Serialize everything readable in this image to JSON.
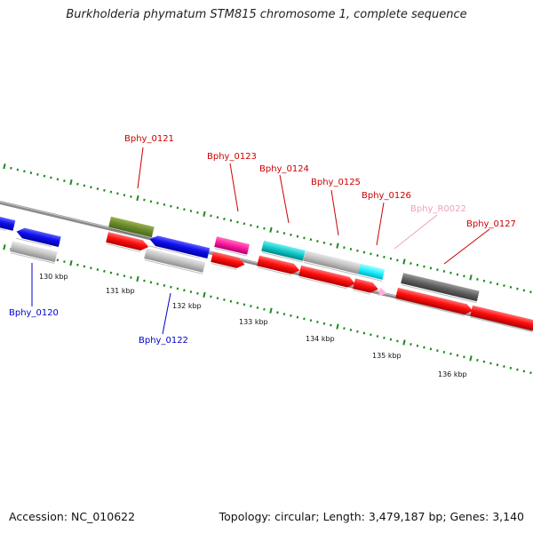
{
  "title": "Burkholderia phymatum STM815 chromosome 1, complete sequence",
  "footer": {
    "accession": "Accession: NC_010622",
    "summary": "Topology: circular; Length: 3,479,187 bp; Genes: 3,140"
  },
  "colors": {
    "backbone": "#8a8a8a",
    "tick_dots": "#1a8a1a",
    "label_red": "#cc0000",
    "label_blue": "#0000cc",
    "label_pink": "#f0a0c0"
  },
  "scale_labels": [
    "130 kbp",
    "131 kbp",
    "132 kbp",
    "133 kbp",
    "134 kbp",
    "135 kbp",
    "136 kbp"
  ],
  "gene_labels": [
    {
      "text": "Bphy_0121",
      "color": "red"
    },
    {
      "text": "Bphy_0123",
      "color": "red"
    },
    {
      "text": "Bphy_0124",
      "color": "red"
    },
    {
      "text": "Bphy_0125",
      "color": "red"
    },
    {
      "text": "Bphy_0126",
      "color": "red"
    },
    {
      "text": "Bphy_R0022",
      "color": "pink"
    },
    {
      "text": "Bphy_0127",
      "color": "red"
    },
    {
      "text": "Bphy_0120",
      "color": "blue"
    },
    {
      "text": "Bphy_0122",
      "color": "blue"
    }
  ]
}
